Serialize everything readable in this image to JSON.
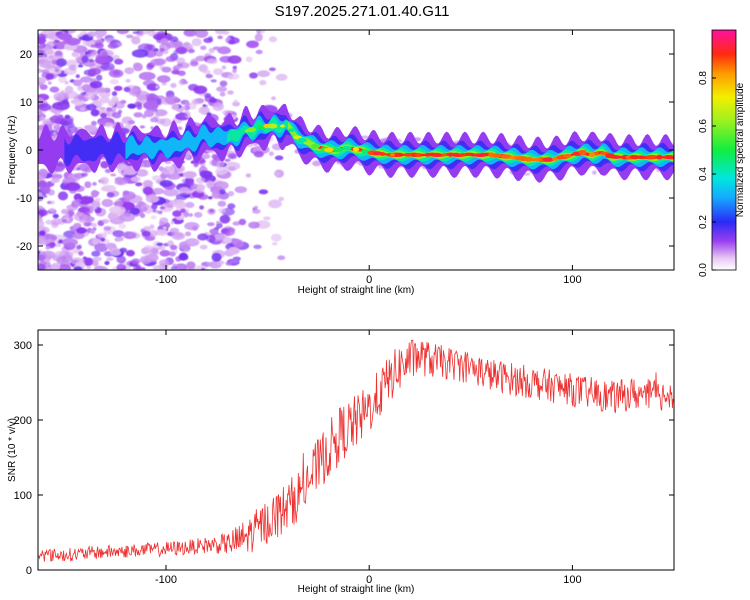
{
  "figure_title": "S197.2025.271.01.40.G11",
  "colors": {
    "line": "#ee3030",
    "background": "#ffffff",
    "axis": "#000000"
  },
  "chart_data": [
    {
      "type": "heatmap",
      "name": "spectrogram",
      "xlabel": "Height of straight line (km)",
      "ylabel": "Frequency (Hz)",
      "xlim": [
        -163,
        150
      ],
      "ylim": [
        -25,
        25
      ],
      "xticks": [
        -100,
        0,
        100
      ],
      "xtick_labels": [
        "-100",
        "0",
        "100"
      ],
      "yticks": [
        -20,
        -10,
        0,
        10,
        20
      ],
      "ytick_labels": [
        "-20",
        "-10",
        "0",
        "10",
        "20"
      ],
      "ridge_x": [
        -163,
        -140,
        -120,
        -100,
        -90,
        -80,
        -70,
        -60,
        -50,
        -40,
        -35,
        -30,
        -25,
        -20,
        -15,
        -10,
        -5,
        0,
        10,
        20,
        30,
        40,
        50,
        60,
        70,
        80,
        85,
        90,
        95,
        100,
        105,
        110,
        115,
        120,
        130,
        140,
        150
      ],
      "ridge_y": [
        0,
        0.2,
        0.5,
        0.5,
        1.5,
        3,
        2.5,
        4,
        5,
        5,
        2.5,
        1.5,
        0.5,
        0,
        0,
        0.5,
        0,
        -0.5,
        -1,
        -1,
        -1,
        -1,
        -1,
        -1,
        -1.5,
        -2,
        -2,
        -2,
        -1.5,
        -1,
        -0.5,
        -1,
        -0.5,
        -1.5,
        -1.5,
        -1.5,
        -1.5
      ],
      "colorbar": {
        "label": "Normalized spectral amplitude",
        "range": [
          0,
          1
        ],
        "ticks": [
          0.0,
          0.2,
          0.4,
          0.6,
          0.8
        ],
        "tick_labels": [
          "0.0",
          "0.2",
          "0.4",
          "0.6",
          "0.8"
        ]
      }
    },
    {
      "type": "line",
      "name": "snr",
      "xlabel": "Height of straight line (km)",
      "ylabel": "SNR (10 * v/v)",
      "xlim": [
        -163,
        150
      ],
      "ylim": [
        0,
        320
      ],
      "xticks": [
        -100,
        0,
        100
      ],
      "xtick_labels": [
        "-100",
        "0",
        "100"
      ],
      "yticks": [
        0,
        100,
        200,
        300
      ],
      "ytick_labels": [
        "0",
        "100",
        "200",
        "300"
      ],
      "series": [
        {
          "name": "SNR",
          "x": [
            -163,
            -150,
            -140,
            -130,
            -120,
            -110,
            -100,
            -90,
            -80,
            -70,
            -65,
            -60,
            -55,
            -50,
            -45,
            -40,
            -35,
            -30,
            -25,
            -20,
            -15,
            -10,
            -5,
            0,
            5,
            10,
            15,
            20,
            25,
            30,
            40,
            50,
            60,
            70,
            80,
            90,
            100,
            110,
            120,
            130,
            140,
            150
          ],
          "values": [
            20,
            20,
            22,
            24,
            25,
            27,
            28,
            30,
            33,
            35,
            38,
            45,
            55,
            65,
            75,
            85,
            100,
            120,
            140,
            160,
            180,
            190,
            200,
            215,
            235,
            255,
            270,
            280,
            285,
            280,
            275,
            270,
            260,
            255,
            250,
            245,
            240,
            235,
            230,
            235,
            232,
            235
          ],
          "noise": [
            9,
            9,
            9,
            9,
            9,
            9,
            10,
            10,
            11,
            14,
            22,
            25,
            28,
            30,
            32,
            34,
            34,
            36,
            36,
            38,
            38,
            38,
            36,
            34,
            34,
            32,
            32,
            28,
            26,
            24,
            22,
            22,
            22,
            22,
            22,
            22,
            22,
            22,
            22,
            22,
            22,
            20
          ]
        }
      ]
    }
  ]
}
